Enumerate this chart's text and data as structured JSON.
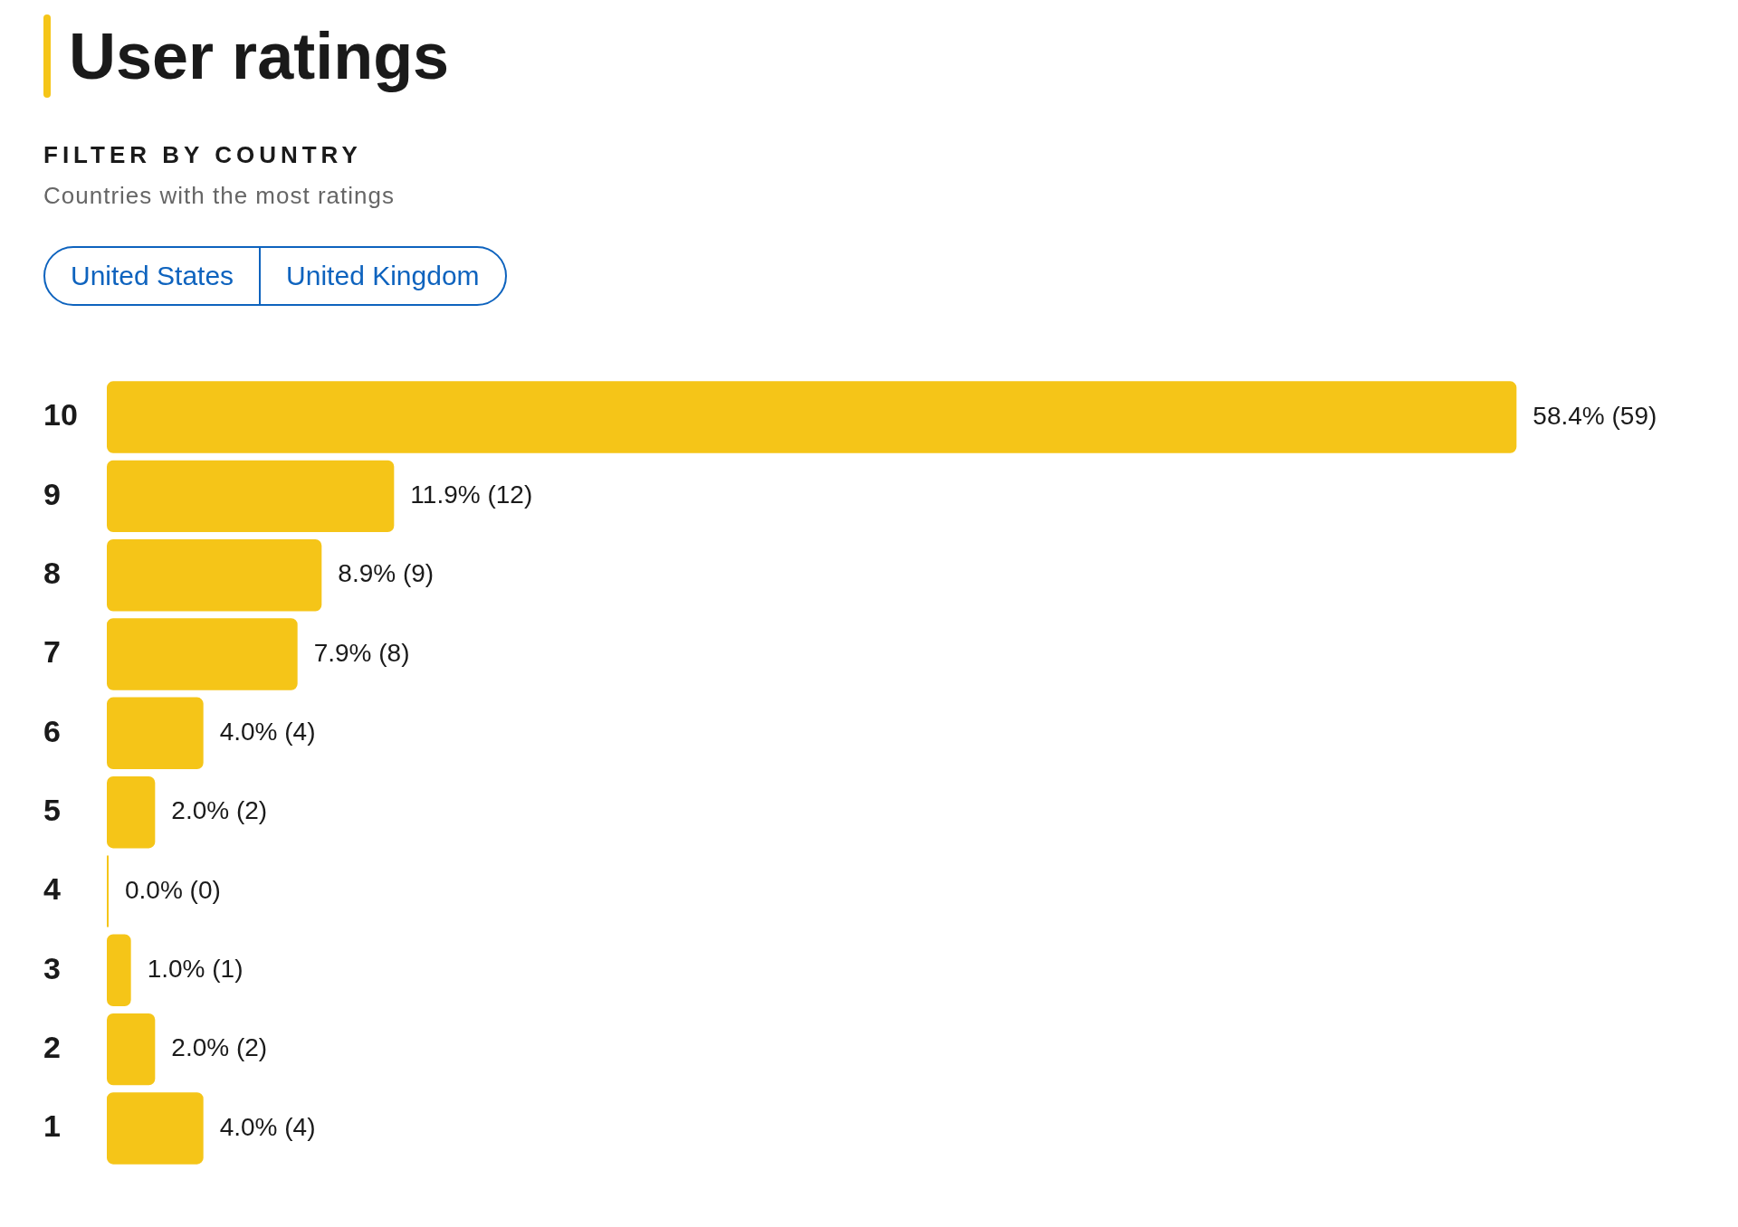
{
  "chart_data": {
    "type": "bar",
    "orientation": "horizontal",
    "title": "User ratings",
    "subtitle": "FILTER BY COUNTRY",
    "annotations": [
      "Countries with the most ratings",
      "United States",
      "United Kingdom"
    ],
    "categories": [
      "10",
      "9",
      "8",
      "7",
      "6",
      "5",
      "4",
      "3",
      "2",
      "1"
    ],
    "values": [
      58.4,
      11.9,
      8.9,
      7.9,
      4.0,
      2.0,
      0.0,
      1.0,
      2.0,
      4.0
    ],
    "value_labels": [
      "58.4% (59)",
      "11.9% (12)",
      "8.9% (9)",
      "7.9% (8)",
      "4.0% (4)",
      "2.0% (2)",
      "0.0% (0)",
      "1.0% (1)",
      "2.0% (2)",
      "4.0% (4)"
    ],
    "color": "#f5c518",
    "grid": false,
    "legend": false
  }
}
